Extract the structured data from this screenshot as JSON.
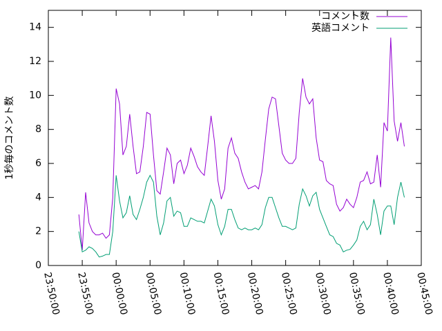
{
  "chart_data": {
    "type": "line",
    "ylabel": "1秒毎のコメント数",
    "x": [
      "23:54:30",
      "23:55:00",
      "23:55:30",
      "23:56:00",
      "23:56:30",
      "23:57:00",
      "23:57:30",
      "23:58:00",
      "23:58:30",
      "23:59:00",
      "23:59:30",
      "00:00:00",
      "00:00:30",
      "00:01:00",
      "00:01:30",
      "00:02:00",
      "00:02:30",
      "00:03:00",
      "00:03:30",
      "00:04:00",
      "00:04:30",
      "00:05:00",
      "00:05:30",
      "00:06:00",
      "00:06:30",
      "00:07:00",
      "00:07:30",
      "00:08:00",
      "00:08:30",
      "00:09:00",
      "00:09:30",
      "00:10:00",
      "00:10:30",
      "00:11:00",
      "00:11:30",
      "00:12:00",
      "00:12:30",
      "00:13:00",
      "00:13:30",
      "00:14:00",
      "00:14:30",
      "00:15:00",
      "00:15:30",
      "00:16:00",
      "00:16:30",
      "00:17:00",
      "00:17:30",
      "00:18:00",
      "00:18:30",
      "00:19:00",
      "00:19:30",
      "00:20:00",
      "00:20:30",
      "00:21:00",
      "00:21:30",
      "00:22:00",
      "00:22:30",
      "00:23:00",
      "00:23:30",
      "00:24:00",
      "00:24:30",
      "00:25:00",
      "00:25:30",
      "00:26:00",
      "00:26:30",
      "00:27:00",
      "00:27:30",
      "00:28:00",
      "00:28:30",
      "00:29:00",
      "00:29:30",
      "00:30:00",
      "00:30:30",
      "00:31:00",
      "00:31:30",
      "00:32:00",
      "00:32:30",
      "00:33:00",
      "00:33:30",
      "00:34:00",
      "00:34:30",
      "00:35:00",
      "00:35:30",
      "00:36:00",
      "00:36:30",
      "00:37:00",
      "00:37:30",
      "00:38:00",
      "00:38:30",
      "00:39:00",
      "00:39:30",
      "00:40:00",
      "00:40:30",
      "00:41:00",
      "00:41:30",
      "00:42:00",
      "00:42:30"
    ],
    "series": [
      {
        "name": "コメント数",
        "color": "#9400d3",
        "values": [
          3.0,
          0.9,
          4.3,
          2.5,
          2.0,
          1.8,
          1.8,
          1.9,
          1.6,
          1.8,
          4.0,
          10.4,
          9.5,
          6.5,
          7.0,
          8.9,
          7.0,
          5.4,
          5.5,
          7.0,
          9.0,
          8.9,
          6.5,
          4.4,
          4.2,
          5.5,
          6.9,
          6.5,
          4.8,
          6.0,
          6.2,
          5.4,
          5.9,
          6.9,
          6.4,
          5.8,
          5.5,
          5.3,
          7.0,
          8.8,
          7.3,
          5.0,
          3.9,
          4.5,
          6.9,
          7.5,
          6.6,
          6.3,
          5.5,
          4.9,
          4.5,
          4.6,
          4.7,
          4.5,
          5.5,
          7.4,
          9.2,
          9.9,
          9.8,
          8.2,
          6.6,
          6.2,
          6.0,
          6.0,
          6.3,
          9.0,
          11.0,
          9.9,
          9.5,
          9.8,
          7.5,
          6.2,
          6.1,
          5.0,
          4.8,
          4.7,
          3.6,
          3.2,
          3.4,
          3.9,
          3.6,
          3.4,
          4.0,
          4.9,
          5.0,
          5.5,
          4.8,
          4.9,
          6.5,
          4.6,
          8.4,
          7.9,
          13.4,
          8.5,
          7.3,
          8.4,
          7.0
        ]
      },
      {
        "name": "英語コメント",
        "color": "#009e73",
        "values": [
          2.0,
          0.8,
          0.9,
          1.1,
          1.0,
          0.8,
          0.5,
          0.55,
          0.65,
          0.65,
          2.0,
          5.3,
          3.8,
          2.8,
          3.1,
          4.1,
          3.0,
          2.7,
          3.3,
          4.0,
          4.9,
          5.3,
          4.9,
          2.9,
          1.8,
          2.5,
          3.8,
          4.0,
          2.9,
          3.2,
          3.1,
          2.3,
          2.3,
          2.8,
          2.7,
          2.6,
          2.6,
          2.5,
          3.2,
          3.9,
          3.5,
          2.4,
          1.8,
          2.3,
          3.3,
          3.3,
          2.7,
          2.2,
          2.1,
          2.2,
          2.1,
          2.1,
          2.2,
          2.1,
          2.4,
          3.4,
          4.0,
          4.0,
          3.4,
          2.8,
          2.3,
          2.3,
          2.2,
          2.1,
          2.2,
          3.6,
          4.5,
          4.1,
          3.5,
          4.1,
          4.3,
          3.3,
          2.8,
          2.3,
          1.8,
          1.7,
          1.3,
          1.2,
          0.8,
          0.9,
          0.95,
          1.2,
          1.5,
          2.3,
          2.6,
          2.1,
          2.4,
          3.9,
          3.0,
          1.8,
          3.2,
          3.5,
          3.5,
          2.4,
          4.0,
          4.9,
          4.0
        ]
      }
    ],
    "xlim": [
      "23:50:00",
      "00:45:00"
    ],
    "xticks": [
      "23:50:00",
      "23:55:00",
      "00:00:00",
      "00:05:00",
      "00:10:00",
      "00:15:00",
      "00:20:00",
      "00:25:00",
      "00:30:00",
      "00:35:00",
      "00:40:00",
      "00:45:00"
    ],
    "ylim": [
      0,
      15
    ],
    "yticks": [
      0,
      2,
      4,
      6,
      8,
      10,
      12,
      14
    ],
    "legend": "top-right"
  }
}
